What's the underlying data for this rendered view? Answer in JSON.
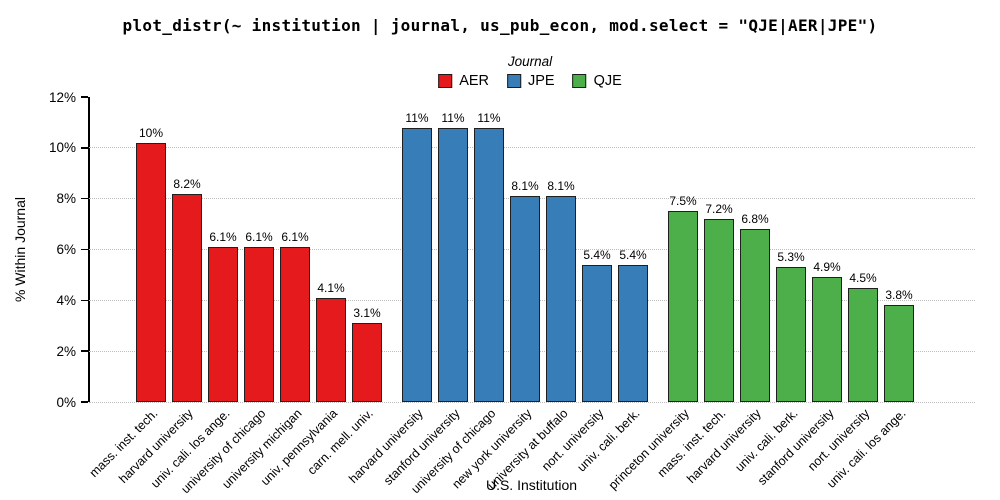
{
  "chart_data": {
    "type": "bar",
    "title": "plot_distr(~ institution | journal, us_pub_econ, mod.select = \"QJE|AER|JPE\")",
    "xlabel": "U.S. Institution",
    "ylabel": "% Within Journal",
    "ylim": [
      0,
      12
    ],
    "grid": "horizontal-dotted",
    "gridline_values": [
      0,
      2,
      4,
      6,
      8,
      10
    ],
    "yticks": [
      {
        "value": 0,
        "label": "0%"
      },
      {
        "value": 2,
        "label": "2%"
      },
      {
        "value": 4,
        "label": "4%"
      },
      {
        "value": 6,
        "label": "6%"
      },
      {
        "value": 8,
        "label": "8%"
      },
      {
        "value": 10,
        "label": "10%"
      },
      {
        "value": 12,
        "label": "12%"
      }
    ],
    "legend": {
      "title": "Journal",
      "position": "top-center",
      "entries": [
        {
          "label": "AER",
          "color": "#E41A1C"
        },
        {
          "label": "JPE",
          "color": "#377EB8"
        },
        {
          "label": "QJE",
          "color": "#4DAF4A"
        }
      ]
    },
    "series": [
      {
        "name": "AER",
        "color": "#E41A1C",
        "bars": [
          {
            "institution": "mass. inst. tech.",
            "value": 10.2,
            "label": "10%"
          },
          {
            "institution": "harvard university",
            "value": 8.2,
            "label": "8.2%"
          },
          {
            "institution": "univ. cali. los ange.",
            "value": 6.1,
            "label": "6.1%"
          },
          {
            "institution": "university of chicago",
            "value": 6.1,
            "label": "6.1%"
          },
          {
            "institution": "university michigan",
            "value": 6.1,
            "label": "6.1%"
          },
          {
            "institution": "univ. pennsylvania",
            "value": 4.1,
            "label": "4.1%"
          },
          {
            "institution": "carn. mell. univ.",
            "value": 3.1,
            "label": "3.1%"
          }
        ]
      },
      {
        "name": "JPE",
        "color": "#377EB8",
        "bars": [
          {
            "institution": "harvard university",
            "value": 10.8,
            "label": "11%"
          },
          {
            "institution": "stanford university",
            "value": 10.8,
            "label": "11%"
          },
          {
            "institution": "university of chicago",
            "value": 10.8,
            "label": "11%"
          },
          {
            "institution": "new york university",
            "value": 8.1,
            "label": "8.1%"
          },
          {
            "institution": "university at buffalo",
            "value": 8.1,
            "label": "8.1%"
          },
          {
            "institution": "nort. university",
            "value": 5.4,
            "label": "5.4%"
          },
          {
            "institution": "univ. cali. berk.",
            "value": 5.4,
            "label": "5.4%"
          }
        ]
      },
      {
        "name": "QJE",
        "color": "#4DAF4A",
        "bars": [
          {
            "institution": "princeton university",
            "value": 7.5,
            "label": "7.5%"
          },
          {
            "institution": "mass. inst. tech.",
            "value": 7.2,
            "label": "7.2%"
          },
          {
            "institution": "harvard university",
            "value": 6.8,
            "label": "6.8%"
          },
          {
            "institution": "univ. cali. berk.",
            "value": 5.3,
            "label": "5.3%"
          },
          {
            "institution": "stanford university",
            "value": 4.9,
            "label": "4.9%"
          },
          {
            "institution": "nort. university",
            "value": 4.5,
            "label": "4.5%"
          },
          {
            "institution": "univ. cali. los ange.",
            "value": 3.8,
            "label": "3.8%"
          }
        ]
      }
    ]
  }
}
